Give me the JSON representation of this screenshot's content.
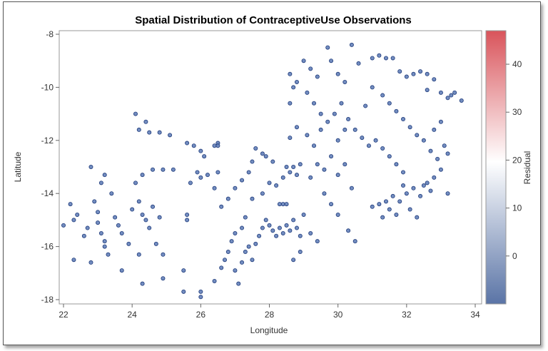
{
  "chart_data": {
    "type": "scatter",
    "title": "Spatial Distribution of ContraceptiveUse Observations",
    "xlabel": "Longitude",
    "ylabel": "Latitude",
    "xlim": [
      22,
      34
    ],
    "ylim": [
      -18,
      -8
    ],
    "xticks": [
      22,
      24,
      26,
      28,
      30,
      32,
      34
    ],
    "yticks": [
      -8,
      -10,
      -12,
      -14,
      -16,
      -18
    ],
    "grid": false,
    "point_color": "#5a79b5",
    "point_edge": "#1e3a7a",
    "colorbar": {
      "label": "Residual",
      "range": [
        -10,
        47
      ],
      "ticks": [
        0,
        10,
        20,
        30,
        40
      ],
      "colors": [
        "#5a74a6",
        "#ffffff",
        "#d9545b"
      ]
    },
    "points": [
      [
        22.0,
        -15.2
      ],
      [
        22.2,
        -14.4
      ],
      [
        22.3,
        -15.0
      ],
      [
        22.3,
        -16.5
      ],
      [
        22.4,
        -14.8
      ],
      [
        22.6,
        -15.6
      ],
      [
        22.7,
        -15.3
      ],
      [
        22.8,
        -16.6
      ],
      [
        22.8,
        -13.0
      ],
      [
        22.9,
        -14.3
      ],
      [
        23.0,
        -14.7
      ],
      [
        23.0,
        -15.1
      ],
      [
        23.1,
        -15.5
      ],
      [
        23.2,
        -15.8
      ],
      [
        23.2,
        -16.0
      ],
      [
        23.3,
        -16.3
      ],
      [
        23.1,
        -13.6
      ],
      [
        23.2,
        -13.3
      ],
      [
        23.4,
        -14.0
      ],
      [
        23.5,
        -14.9
      ],
      [
        23.6,
        -15.2
      ],
      [
        23.7,
        -15.5
      ],
      [
        23.7,
        -16.9
      ],
      [
        23.9,
        -15.9
      ],
      [
        24.0,
        -14.6
      ],
      [
        24.2,
        -14.3
      ],
      [
        24.3,
        -14.8
      ],
      [
        24.4,
        -15.0
      ],
      [
        24.5,
        -15.3
      ],
      [
        24.6,
        -14.5
      ],
      [
        24.7,
        -15.9
      ],
      [
        24.8,
        -14.9
      ],
      [
        24.9,
        -16.3
      ],
      [
        24.2,
        -16.3
      ],
      [
        24.3,
        -17.4
      ],
      [
        24.9,
        -17.2
      ],
      [
        25.5,
        -16.9
      ],
      [
        25.5,
        -17.7
      ],
      [
        25.6,
        -14.8
      ],
      [
        25.6,
        -15.0
      ],
      [
        25.7,
        -13.6
      ],
      [
        25.9,
        -13.2
      ],
      [
        24.1,
        -11.0
      ],
      [
        24.2,
        -11.6
      ],
      [
        24.4,
        -11.3
      ],
      [
        24.5,
        -11.7
      ],
      [
        24.8,
        -11.7
      ],
      [
        25.1,
        -11.8
      ],
      [
        24.1,
        -13.6
      ],
      [
        24.3,
        -13.3
      ],
      [
        24.6,
        -13.1
      ],
      [
        24.9,
        -13.1
      ],
      [
        25.2,
        -13.1
      ],
      [
        25.6,
        -12.1
      ],
      [
        25.8,
        -12.2
      ],
      [
        26.0,
        -12.4
      ],
      [
        26.1,
        -12.6
      ],
      [
        26.4,
        -12.2
      ],
      [
        26.5,
        -12.1
      ],
      [
        26.5,
        -12.2
      ],
      [
        26.0,
        -13.4
      ],
      [
        26.2,
        -13.3
      ],
      [
        26.4,
        -13.8
      ],
      [
        26.5,
        -13.2
      ],
      [
        26.0,
        -17.7
      ],
      [
        26.0,
        -17.9
      ],
      [
        26.4,
        -17.3
      ],
      [
        26.6,
        -16.8
      ],
      [
        26.7,
        -16.5
      ],
      [
        26.8,
        -16.2
      ],
      [
        26.9,
        -15.8
      ],
      [
        27.0,
        -15.5
      ],
      [
        27.2,
        -15.3
      ],
      [
        27.0,
        -16.9
      ],
      [
        27.1,
        -17.4
      ],
      [
        27.2,
        -16.6
      ],
      [
        27.3,
        -16.2
      ],
      [
        27.4,
        -16.0
      ],
      [
        27.5,
        -16.5
      ],
      [
        27.6,
        -15.9
      ],
      [
        27.7,
        -15.6
      ],
      [
        27.8,
        -15.3
      ],
      [
        27.9,
        -15.0
      ],
      [
        28.0,
        -15.2
      ],
      [
        28.1,
        -15.4
      ],
      [
        28.2,
        -15.6
      ],
      [
        28.3,
        -15.3
      ],
      [
        28.4,
        -15.5
      ],
      [
        28.5,
        -15.2
      ],
      [
        28.6,
        -15.4
      ],
      [
        28.7,
        -15.0
      ],
      [
        28.8,
        -15.3
      ],
      [
        28.9,
        -15.6
      ],
      [
        29.0,
        -14.8
      ],
      [
        28.3,
        -14.4
      ],
      [
        28.4,
        -14.4
      ],
      [
        28.5,
        -14.4
      ],
      [
        28.2,
        -13.7
      ],
      [
        28.4,
        -13.4
      ],
      [
        28.5,
        -13.0
      ],
      [
        28.6,
        -13.2
      ],
      [
        28.7,
        -13.0
      ],
      [
        28.8,
        -13.3
      ],
      [
        28.9,
        -12.9
      ],
      [
        28.1,
        -12.8
      ],
      [
        27.9,
        -12.6
      ],
      [
        27.8,
        -12.5
      ],
      [
        27.6,
        -12.3
      ],
      [
        27.5,
        -12.8
      ],
      [
        27.4,
        -13.2
      ],
      [
        27.2,
        -13.5
      ],
      [
        27.0,
        -13.8
      ],
      [
        26.8,
        -14.2
      ],
      [
        26.6,
        -14.5
      ],
      [
        27.3,
        -14.9
      ],
      [
        27.5,
        -14.2
      ],
      [
        27.8,
        -14.0
      ],
      [
        28.0,
        -13.6
      ],
      [
        29.2,
        -13.4
      ],
      [
        29.4,
        -12.9
      ],
      [
        29.6,
        -13.1
      ],
      [
        29.8,
        -12.6
      ],
      [
        30.0,
        -13.3
      ],
      [
        30.2,
        -12.9
      ],
      [
        30.4,
        -13.8
      ],
      [
        29.6,
        -14.0
      ],
      [
        29.8,
        -14.4
      ],
      [
        30.0,
        -14.8
      ],
      [
        30.3,
        -15.4
      ],
      [
        30.5,
        -15.8
      ],
      [
        29.2,
        -15.5
      ],
      [
        29.4,
        -15.8
      ],
      [
        28.7,
        -16.5
      ],
      [
        28.9,
        -16.2
      ],
      [
        29.0,
        -9.0
      ],
      [
        29.2,
        -9.3
      ],
      [
        29.4,
        -9.6
      ],
      [
        29.7,
        -8.5
      ],
      [
        29.8,
        -9.0
      ],
      [
        30.0,
        -9.5
      ],
      [
        30.2,
        -9.8
      ],
      [
        30.4,
        -8.4
      ],
      [
        30.6,
        -9.1
      ],
      [
        29.1,
        -10.2
      ],
      [
        29.3,
        -10.6
      ],
      [
        29.5,
        -11.0
      ],
      [
        29.7,
        -11.3
      ],
      [
        29.9,
        -11.0
      ],
      [
        30.1,
        -10.6
      ],
      [
        30.3,
        -11.2
      ],
      [
        30.5,
        -11.6
      ],
      [
        30.7,
        -11.9
      ],
      [
        30.9,
        -12.2
      ],
      [
        29.1,
        -11.8
      ],
      [
        28.8,
        -11.5
      ],
      [
        28.6,
        -11.9
      ],
      [
        28.6,
        -10.6
      ],
      [
        28.7,
        -10.0
      ],
      [
        28.6,
        -9.5
      ],
      [
        28.8,
        -9.8
      ],
      [
        31.0,
        -8.9
      ],
      [
        31.2,
        -8.8
      ],
      [
        31.4,
        -8.9
      ],
      [
        31.6,
        -8.9
      ],
      [
        31.8,
        -9.4
      ],
      [
        32.0,
        -9.6
      ],
      [
        32.2,
        -9.5
      ],
      [
        32.4,
        -9.4
      ],
      [
        32.6,
        -9.5
      ],
      [
        32.8,
        -9.7
      ],
      [
        33.0,
        -10.2
      ],
      [
        33.2,
        -10.4
      ],
      [
        33.4,
        -10.2
      ],
      [
        33.6,
        -10.5
      ],
      [
        31.0,
        -10.0
      ],
      [
        31.3,
        -10.3
      ],
      [
        31.5,
        -10.6
      ],
      [
        31.7,
        -10.9
      ],
      [
        31.9,
        -11.2
      ],
      [
        32.1,
        -11.5
      ],
      [
        32.3,
        -11.8
      ],
      [
        32.5,
        -12.0
      ],
      [
        32.7,
        -12.4
      ],
      [
        32.9,
        -12.7
      ],
      [
        33.1,
        -12.2
      ],
      [
        33.2,
        -12.5
      ],
      [
        33.0,
        -11.3
      ],
      [
        32.8,
        -11.6
      ],
      [
        31.0,
        -14.5
      ],
      [
        31.2,
        -14.4
      ],
      [
        31.4,
        -14.3
      ],
      [
        31.6,
        -14.1
      ],
      [
        31.8,
        -14.3
      ],
      [
        32.0,
        -14.0
      ],
      [
        32.2,
        -13.8
      ],
      [
        32.4,
        -14.1
      ],
      [
        32.5,
        -13.7
      ],
      [
        32.6,
        -13.6
      ],
      [
        32.7,
        -13.9
      ],
      [
        32.8,
        -13.4
      ],
      [
        33.0,
        -13.1
      ],
      [
        33.2,
        -14.0
      ],
      [
        31.3,
        -14.9
      ],
      [
        31.5,
        -14.6
      ],
      [
        31.7,
        -14.8
      ],
      [
        32.1,
        -14.6
      ],
      [
        32.3,
        -14.9
      ],
      [
        31.1,
        -12.0
      ],
      [
        31.3,
        -12.3
      ],
      [
        31.5,
        -12.6
      ],
      [
        31.7,
        -12.9
      ],
      [
        31.9,
        -13.2
      ],
      [
        30.0,
        -12.0
      ],
      [
        30.2,
        -11.6
      ],
      [
        29.3,
        -12.2
      ],
      [
        29.5,
        -11.6
      ],
      [
        30.8,
        -10.7
      ],
      [
        31.9,
        -13.7
      ],
      [
        33.3,
        -10.3
      ],
      [
        32.6,
        -10.1
      ]
    ]
  }
}
